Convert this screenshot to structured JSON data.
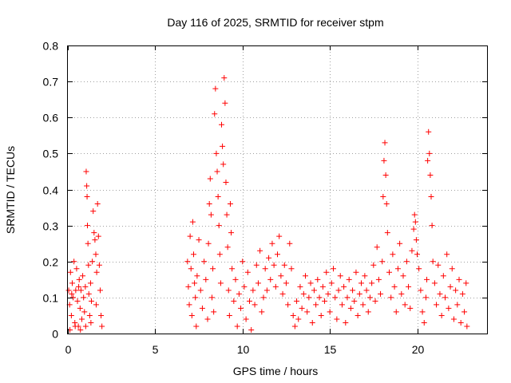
{
  "chart_data": {
    "type": "scatter",
    "title": "Day 116 of 2025, SRMTID for receiver stpm",
    "xlabel": "GPS time / hours",
    "ylabel": "SRMTID / TECUs",
    "xlim": [
      0,
      24
    ],
    "ylim": [
      0,
      0.8
    ],
    "xticks": [
      0,
      5,
      10,
      15,
      20
    ],
    "xtick_labels": [
      "0",
      "5",
      "10",
      "15",
      "20"
    ],
    "yticks": [
      0,
      0.1,
      0.2,
      0.3,
      0.4,
      0.5,
      0.6,
      0.7,
      0.8
    ],
    "ytick_labels": [
      "0",
      "0.1",
      "0.2",
      "0.3",
      "0.4",
      "0.5",
      "0.6",
      "0.7",
      "0.8"
    ],
    "grid": true,
    "marker": "plus",
    "series": [
      {
        "name": "SRMTID",
        "color": "#ff0000",
        "points": [
          [
            0.05,
            0.12
          ],
          [
            0.1,
            0.08
          ],
          [
            0.15,
            0.17
          ],
          [
            0.2,
            0.05
          ],
          [
            0.25,
            0.14
          ],
          [
            0.3,
            0.1
          ],
          [
            0.35,
            0.2
          ],
          [
            0.4,
            0.03
          ],
          [
            0.45,
            0.12
          ],
          [
            0.5,
            0.18
          ],
          [
            0.55,
            0.09
          ],
          [
            0.6,
            0.02
          ],
          [
            0.65,
            0.15
          ],
          [
            0.7,
            0.07
          ],
          [
            0.75,
            0.12
          ],
          [
            0.8,
            0.04
          ],
          [
            0.85,
            0.16
          ],
          [
            0.9,
            0.1
          ],
          [
            0.95,
            0.06
          ],
          [
            1.0,
            0.13
          ],
          [
            1.05,
            0.45
          ],
          [
            1.08,
            0.41
          ],
          [
            1.1,
            0.38
          ],
          [
            1.12,
            0.3
          ],
          [
            1.15,
            0.25
          ],
          [
            1.18,
            0.19
          ],
          [
            1.2,
            0.11
          ],
          [
            1.25,
            0.05
          ],
          [
            1.3,
            0.14
          ],
          [
            1.35,
            0.09
          ],
          [
            1.4,
            0.2
          ],
          [
            1.45,
            0.34
          ],
          [
            1.5,
            0.28
          ],
          [
            1.55,
            0.26
          ],
          [
            1.6,
            0.22
          ],
          [
            1.65,
            0.17
          ],
          [
            1.7,
            0.36
          ],
          [
            1.75,
            0.27
          ],
          [
            1.8,
            0.19
          ],
          [
            1.85,
            0.12
          ],
          [
            1.9,
            0.05
          ],
          [
            1.95,
            0.02
          ],
          [
            0.12,
            0.01
          ],
          [
            0.42,
            0.02
          ],
          [
            0.72,
            0.01
          ],
          [
            1.02,
            0.02
          ],
          [
            1.32,
            0.03
          ],
          [
            0.22,
            0.11
          ],
          [
            0.62,
            0.13
          ],
          [
            1.62,
            0.08
          ],
          [
            6.85,
            0.2
          ],
          [
            6.9,
            0.13
          ],
          [
            6.95,
            0.08
          ],
          [
            7.0,
            0.27
          ],
          [
            7.05,
            0.18
          ],
          [
            7.1,
            0.05
          ],
          [
            7.15,
            0.31
          ],
          [
            7.2,
            0.22
          ],
          [
            7.25,
            0.14
          ],
          [
            7.3,
            0.1
          ],
          [
            7.35,
            0.02
          ],
          [
            7.4,
            0.16
          ],
          [
            7.5,
            0.26
          ],
          [
            7.6,
            0.12
          ],
          [
            7.7,
            0.07
          ],
          [
            7.8,
            0.2
          ],
          [
            7.9,
            0.15
          ],
          [
            8.0,
            0.04
          ],
          [
            8.05,
            0.25
          ],
          [
            8.1,
            0.36
          ],
          [
            8.15,
            0.43
          ],
          [
            8.2,
            0.33
          ],
          [
            8.25,
            0.1
          ],
          [
            8.3,
            0.18
          ],
          [
            8.35,
            0.06
          ],
          [
            8.4,
            0.61
          ],
          [
            8.45,
            0.68
          ],
          [
            8.5,
            0.5
          ],
          [
            8.55,
            0.45
          ],
          [
            8.6,
            0.38
          ],
          [
            8.65,
            0.3
          ],
          [
            8.7,
            0.22
          ],
          [
            8.75,
            0.14
          ],
          [
            8.8,
            0.58
          ],
          [
            8.85,
            0.52
          ],
          [
            8.9,
            0.47
          ],
          [
            8.95,
            0.71
          ],
          [
            9.0,
            0.64
          ],
          [
            9.05,
            0.42
          ],
          [
            9.1,
            0.33
          ],
          [
            9.15,
            0.24
          ],
          [
            9.2,
            0.12
          ],
          [
            9.25,
            0.05
          ],
          [
            9.3,
            0.36
          ],
          [
            9.35,
            0.28
          ],
          [
            9.4,
            0.18
          ],
          [
            9.5,
            0.09
          ],
          [
            9.6,
            0.15
          ],
          [
            9.7,
            0.02
          ],
          [
            9.8,
            0.11
          ],
          [
            9.9,
            0.07
          ],
          [
            10.0,
            0.2
          ],
          [
            10.1,
            0.13
          ],
          [
            10.2,
            0.04
          ],
          [
            10.3,
            0.17
          ],
          [
            10.4,
            0.09
          ],
          [
            10.5,
            0.01
          ],
          [
            10.6,
            0.12
          ],
          [
            10.7,
            0.08
          ],
          [
            10.8,
            0.19
          ],
          [
            10.9,
            0.14
          ],
          [
            11.0,
            0.23
          ],
          [
            11.1,
            0.06
          ],
          [
            11.2,
            0.1
          ],
          [
            11.3,
            0.18
          ],
          [
            11.4,
            0.12
          ],
          [
            11.5,
            0.21
          ],
          [
            11.6,
            0.15
          ],
          [
            11.7,
            0.25
          ],
          [
            11.8,
            0.19
          ],
          [
            11.9,
            0.13
          ],
          [
            12.0,
            0.22
          ],
          [
            12.1,
            0.27
          ],
          [
            12.2,
            0.16
          ],
          [
            12.3,
            0.11
          ],
          [
            12.4,
            0.19
          ],
          [
            12.5,
            0.14
          ],
          [
            12.6,
            0.08
          ],
          [
            12.7,
            0.25
          ],
          [
            12.8,
            0.18
          ],
          [
            12.9,
            0.05
          ],
          [
            13.0,
            0.02
          ],
          [
            13.1,
            0.09
          ],
          [
            13.2,
            0.04
          ],
          [
            13.3,
            0.13
          ],
          [
            13.4,
            0.07
          ],
          [
            13.5,
            0.11
          ],
          [
            13.6,
            0.16
          ],
          [
            13.7,
            0.06
          ],
          [
            13.8,
            0.1
          ],
          [
            13.9,
            0.14
          ],
          [
            14.0,
            0.03
          ],
          [
            14.1,
            0.12
          ],
          [
            14.2,
            0.08
          ],
          [
            14.3,
            0.15
          ],
          [
            14.4,
            0.1
          ],
          [
            14.5,
            0.05
          ],
          [
            14.6,
            0.13
          ],
          [
            14.7,
            0.09
          ],
          [
            14.8,
            0.17
          ],
          [
            14.9,
            0.11
          ],
          [
            15.0,
            0.06
          ],
          [
            15.1,
            0.14
          ],
          [
            15.2,
            0.18
          ],
          [
            15.3,
            0.1
          ],
          [
            15.4,
            0.04
          ],
          [
            15.5,
            0.12
          ],
          [
            15.6,
            0.16
          ],
          [
            15.7,
            0.08
          ],
          [
            15.8,
            0.13
          ],
          [
            15.9,
            0.03
          ],
          [
            16.0,
            0.1
          ],
          [
            16.1,
            0.15
          ],
          [
            16.2,
            0.07
          ],
          [
            16.3,
            0.12
          ],
          [
            16.4,
            0.09
          ],
          [
            16.5,
            0.17
          ],
          [
            16.6,
            0.05
          ],
          [
            16.7,
            0.11
          ],
          [
            16.8,
            0.14
          ],
          [
            16.9,
            0.08
          ],
          [
            17.0,
            0.16
          ],
          [
            17.1,
            0.12
          ],
          [
            17.2,
            0.06
          ],
          [
            17.3,
            0.1
          ],
          [
            17.4,
            0.14
          ],
          [
            17.5,
            0.19
          ],
          [
            17.6,
            0.09
          ],
          [
            17.7,
            0.24
          ],
          [
            17.8,
            0.15
          ],
          [
            17.9,
            0.11
          ],
          [
            18.0,
            0.2
          ],
          [
            18.05,
            0.38
          ],
          [
            18.1,
            0.48
          ],
          [
            18.15,
            0.53
          ],
          [
            18.2,
            0.44
          ],
          [
            18.25,
            0.36
          ],
          [
            18.3,
            0.28
          ],
          [
            18.4,
            0.17
          ],
          [
            18.5,
            0.1
          ],
          [
            18.6,
            0.22
          ],
          [
            18.7,
            0.13
          ],
          [
            18.8,
            0.06
          ],
          [
            18.9,
            0.18
          ],
          [
            19.0,
            0.25
          ],
          [
            19.1,
            0.11
          ],
          [
            19.2,
            0.16
          ],
          [
            19.3,
            0.08
          ],
          [
            19.4,
            0.2
          ],
          [
            19.5,
            0.13
          ],
          [
            19.6,
            0.07
          ],
          [
            19.7,
            0.23
          ],
          [
            19.8,
            0.29
          ],
          [
            19.85,
            0.33
          ],
          [
            19.9,
            0.31
          ],
          [
            19.95,
            0.26
          ],
          [
            20.0,
            0.22
          ],
          [
            20.1,
            0.18
          ],
          [
            20.2,
            0.12
          ],
          [
            20.3,
            0.06
          ],
          [
            20.4,
            0.03
          ],
          [
            20.5,
            0.1
          ],
          [
            20.55,
            0.15
          ],
          [
            20.6,
            0.48
          ],
          [
            20.65,
            0.56
          ],
          [
            20.7,
            0.5
          ],
          [
            20.75,
            0.44
          ],
          [
            20.8,
            0.38
          ],
          [
            20.85,
            0.3
          ],
          [
            20.9,
            0.2
          ],
          [
            21.0,
            0.14
          ],
          [
            21.1,
            0.08
          ],
          [
            21.2,
            0.19
          ],
          [
            21.3,
            0.11
          ],
          [
            21.4,
            0.05
          ],
          [
            21.5,
            0.16
          ],
          [
            21.6,
            0.1
          ],
          [
            21.7,
            0.22
          ],
          [
            21.8,
            0.07
          ],
          [
            21.9,
            0.13
          ],
          [
            22.0,
            0.18
          ],
          [
            22.1,
            0.04
          ],
          [
            22.2,
            0.12
          ],
          [
            22.3,
            0.08
          ],
          [
            22.4,
            0.15
          ],
          [
            22.5,
            0.03
          ],
          [
            22.6,
            0.11
          ],
          [
            22.7,
            0.06
          ],
          [
            22.8,
            0.14
          ],
          [
            22.85,
            0.02
          ]
        ]
      }
    ]
  }
}
